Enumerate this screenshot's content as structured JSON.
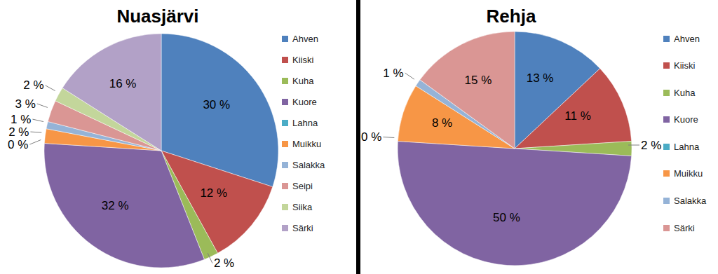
{
  "chart_data": [
    {
      "type": "pie",
      "title": "Nuasjärvi",
      "categories": [
        "Ahven",
        "Kiiski",
        "Kuha",
        "Kuore",
        "Lahna",
        "Muikku",
        "Salakka",
        "Seipi",
        "Siika",
        "Särki"
      ],
      "values": [
        30,
        12,
        2,
        32,
        0,
        2,
        1,
        3,
        2,
        16
      ],
      "value_labels": [
        "30 %",
        "12 %",
        "2 %",
        "32 %",
        "0 %",
        "2 %",
        "1 %",
        "3 %",
        "2 %",
        "16 %"
      ],
      "colors": [
        "#4f81bd",
        "#c0504d",
        "#9bbb59",
        "#8064a2",
        "#4bacc6",
        "#f79646",
        "#95b3d7",
        "#da9694",
        "#c3d69b",
        "#b2a1c7"
      ],
      "data_labels": true,
      "legend": "right"
    },
    {
      "type": "pie",
      "title": "Rehja",
      "categories": [
        "Ahven",
        "Kiiski",
        "Kuha",
        "Kuore",
        "Lahna",
        "Muikku",
        "Salakka",
        "Särki"
      ],
      "values": [
        13,
        11,
        2,
        50,
        0,
        8,
        1,
        15
      ],
      "value_labels": [
        "13 %",
        "11 %",
        "2 %",
        "50 %",
        "0 %",
        "8 %",
        "1 %",
        "15 %"
      ],
      "colors": [
        "#4f81bd",
        "#c0504d",
        "#9bbb59",
        "#8064a2",
        "#4bacc6",
        "#f79646",
        "#95b3d7",
        "#da9694"
      ],
      "data_labels": true,
      "legend": "right"
    }
  ]
}
